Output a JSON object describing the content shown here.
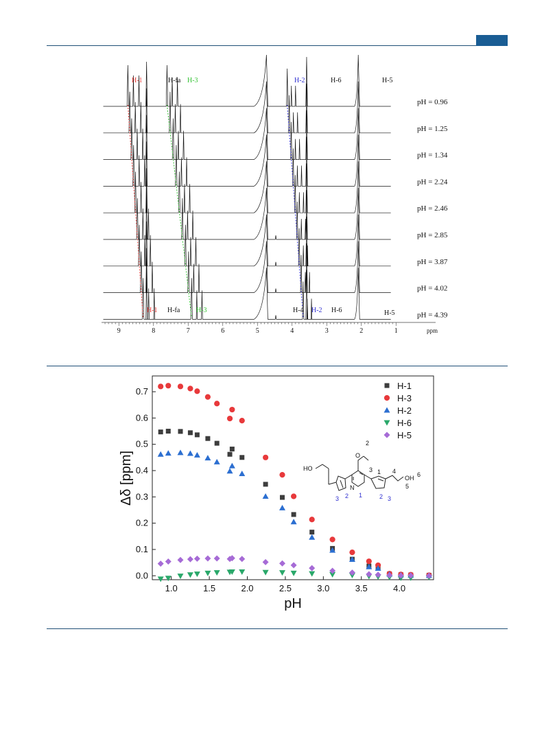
{
  "colors": {
    "header": "#1e4f76",
    "tab": "#1a5d94",
    "nmr_h1": "#e53935",
    "nmr_h3": "#33c233",
    "nmr_h2": "#2f2fd0",
    "spectrum": "#111111"
  },
  "nmr": {
    "top_labels": {
      "h1": "H-1",
      "hfa": "H-fa",
      "h3": "H-3",
      "h2": "H-2",
      "h6": "H-6",
      "h5": "H-5"
    },
    "bottom_labels": {
      "h1": "H-1",
      "hfa": "H-fa",
      "h3": "H-3",
      "h4": "H-4",
      "h2": "H-2",
      "h6": "H-6",
      "h5": "H-5"
    },
    "ph_labels": [
      "pH = 0.96",
      "pH = 1.25",
      "pH = 1.34",
      "pH = 2.24",
      "pH = 2.46",
      "pH = 2.85",
      "pH = 3.87",
      "pH = 4.02",
      "pH = 4.39"
    ],
    "axis_ticks": [
      "9",
      "8",
      "7",
      "6",
      "5",
      "4",
      "3",
      "2",
      "1"
    ],
    "axis_unit": "ppm"
  },
  "chart_data": {
    "type": "scatter",
    "xlabel": "pH",
    "ylabel": "Δδ [ppm]",
    "xlim": [
      0.75,
      4.45
    ],
    "ylim": [
      -0.015,
      0.76
    ],
    "xticks": [
      "1.0",
      "1.5",
      "2.0",
      "2.5",
      "3.0",
      "3.5",
      "4.0"
    ],
    "yticks": [
      "0.0",
      "0.1",
      "0.2",
      "0.3",
      "0.4",
      "0.5",
      "0.6",
      "0.7"
    ],
    "legend_position": "top-right",
    "series": [
      {
        "name": "H-1",
        "marker": "square",
        "color": "#3d3d3d",
        "x": [
          0.86,
          0.96,
          1.12,
          1.25,
          1.34,
          1.48,
          1.6,
          1.77,
          1.8,
          1.93,
          2.24,
          2.46,
          2.61,
          2.85,
          3.12,
          3.38,
          3.6,
          3.72,
          3.87,
          4.02,
          4.15,
          4.39
        ],
        "y": [
          0.547,
          0.55,
          0.549,
          0.544,
          0.536,
          0.522,
          0.504,
          0.462,
          0.482,
          0.45,
          0.348,
          0.298,
          0.233,
          0.166,
          0.104,
          0.063,
          0.037,
          0.031,
          0.007,
          0.004,
          0.003,
          0.002
        ]
      },
      {
        "name": "H-3",
        "marker": "circle",
        "color": "#e8393b",
        "x": [
          0.86,
          0.96,
          1.12,
          1.25,
          1.34,
          1.48,
          1.6,
          1.77,
          1.8,
          1.93,
          2.24,
          2.46,
          2.61,
          2.85,
          3.12,
          3.38,
          3.6,
          3.72,
          3.87,
          4.02,
          4.15,
          4.39
        ],
        "y": [
          0.72,
          0.723,
          0.72,
          0.712,
          0.702,
          0.68,
          0.655,
          0.598,
          0.632,
          0.59,
          0.45,
          0.384,
          0.302,
          0.214,
          0.138,
          0.089,
          0.055,
          0.04,
          0.008,
          0.005,
          0.004,
          0.002
        ]
      },
      {
        "name": "H-2",
        "marker": "triangle-up",
        "color": "#2c6fd1",
        "x": [
          0.86,
          0.96,
          1.12,
          1.25,
          1.34,
          1.48,
          1.6,
          1.77,
          1.8,
          1.93,
          2.24,
          2.46,
          2.61,
          2.85,
          3.12,
          3.38,
          3.6,
          3.72,
          3.87,
          4.02,
          4.15,
          4.39
        ],
        "y": [
          0.462,
          0.466,
          0.468,
          0.465,
          0.459,
          0.448,
          0.433,
          0.398,
          0.418,
          0.388,
          0.302,
          0.258,
          0.205,
          0.146,
          0.097,
          0.062,
          0.034,
          0.028,
          0.006,
          0.003,
          0.002,
          0.001
        ]
      },
      {
        "name": "H-6",
        "marker": "triangle-down",
        "color": "#2aa86a",
        "x": [
          0.86,
          0.96,
          1.12,
          1.25,
          1.34,
          1.48,
          1.6,
          1.77,
          1.8,
          1.93,
          2.24,
          2.46,
          2.61,
          2.85,
          3.12,
          3.38,
          3.6,
          3.72,
          3.87,
          4.02,
          4.15,
          4.39
        ],
        "y": [
          -0.012,
          -0.009,
          -0.001,
          0.004,
          0.007,
          0.01,
          0.012,
          0.014,
          0.015,
          0.015,
          0.013,
          0.012,
          0.01,
          0.008,
          0.005,
          0.002,
          -0.002,
          -0.004,
          -0.006,
          -0.008,
          -0.008,
          -0.006
        ]
      },
      {
        "name": "H-5",
        "marker": "diamond",
        "color": "#a66bd6",
        "x": [
          0.86,
          0.96,
          1.12,
          1.25,
          1.34,
          1.48,
          1.6,
          1.77,
          1.8,
          1.93,
          2.24,
          2.46,
          2.61,
          2.85,
          3.12,
          3.38,
          3.6,
          3.72,
          3.87,
          4.02,
          4.15,
          4.39
        ],
        "y": [
          0.046,
          0.054,
          0.06,
          0.063,
          0.065,
          0.066,
          0.066,
          0.064,
          0.067,
          0.064,
          0.052,
          0.047,
          0.04,
          0.029,
          0.019,
          0.012,
          0.006,
          0.004,
          0.002,
          0.001,
          0.001,
          0.0
        ]
      }
    ],
    "inset_structure": {
      "atom_labels": {
        "oh_left": "HO",
        "oh_right": "OH",
        "o": "O",
        "n_pyridine": "N"
      },
      "numbers": {
        "n1": "1",
        "n2": "2",
        "n3": "3",
        "c1": "1",
        "c2": "2",
        "c3": "3",
        "c4": "4",
        "c5": "5",
        "c6": "6",
        "ring_n2": "2",
        "ring_n3": "3"
      }
    }
  }
}
